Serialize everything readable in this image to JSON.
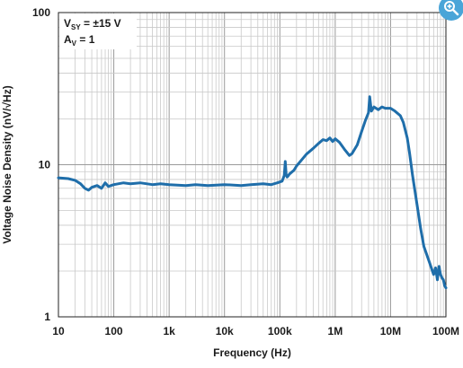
{
  "chart_data": {
    "type": "line",
    "title": "",
    "xlabel": "Frequency (Hz)",
    "ylabel": "Voltage Noise Density (nV/√Hz)",
    "x_scale": "log",
    "y_scale": "log",
    "xlim": [
      10,
      100000000
    ],
    "ylim": [
      1,
      100
    ],
    "x_ticks": [
      10,
      100,
      1000,
      10000,
      100000,
      1000000,
      10000000,
      100000000
    ],
    "x_tick_labels": [
      "10",
      "100",
      "1k",
      "10k",
      "100k",
      "1M",
      "10M",
      "100M"
    ],
    "y_ticks": [
      1,
      10,
      100
    ],
    "y_tick_labels": [
      "1",
      "10",
      "100"
    ],
    "grid": true,
    "legend_box": {
      "line1_main": "V",
      "line1_sub": "SY",
      "line1_rest": " = ±15 V",
      "line2_main": "A",
      "line2_sub": "V",
      "line2_rest": " = 1"
    },
    "series": [
      {
        "color": "#1f6eaa",
        "x": [
          10,
          15,
          20,
          25,
          30,
          35,
          40,
          50,
          60,
          70,
          80,
          100,
          150,
          200,
          300,
          500,
          700,
          1000,
          2000,
          3000,
          5000,
          10000,
          20000,
          30000,
          50000,
          70000,
          90000,
          110000,
          120000,
          125000,
          130000,
          135000,
          140000,
          150000,
          180000,
          200000,
          250000,
          300000,
          400000,
          500000,
          600000,
          700000,
          800000,
          900000,
          1000000,
          1200000,
          1500000,
          1800000,
          2000000,
          2500000,
          3000000,
          3500000,
          4000000,
          4200000,
          4500000,
          5000000,
          6000000,
          7000000,
          8000000,
          10000000,
          12000000,
          15000000,
          17000000,
          20000000,
          22000000,
          25000000,
          30000000,
          35000000,
          40000000,
          50000000,
          60000000,
          65000000,
          70000000,
          75000000,
          80000000,
          85000000,
          90000000,
          95000000,
          100000000
        ],
        "y": [
          8.2,
          8.1,
          7.9,
          7.5,
          7.0,
          6.8,
          7.1,
          7.3,
          7.0,
          7.6,
          7.2,
          7.4,
          7.6,
          7.5,
          7.6,
          7.4,
          7.5,
          7.4,
          7.3,
          7.4,
          7.3,
          7.4,
          7.3,
          7.4,
          7.5,
          7.4,
          7.6,
          7.8,
          8.5,
          10.5,
          8.6,
          8.3,
          8.4,
          8.7,
          9.2,
          9.8,
          10.8,
          11.7,
          12.8,
          13.8,
          14.6,
          14.4,
          15.0,
          14.2,
          14.8,
          14.0,
          12.5,
          11.5,
          11.8,
          13.5,
          16.5,
          19.5,
          22.0,
          28.0,
          22.5,
          24.0,
          23.0,
          24.0,
          23.5,
          23.5,
          22.5,
          21.0,
          19.0,
          15.0,
          12.0,
          8.5,
          5.5,
          3.8,
          2.9,
          2.3,
          1.9,
          2.1,
          1.75,
          2.15,
          1.9,
          1.8,
          1.75,
          1.6,
          1.55
        ]
      }
    ]
  },
  "ui": {
    "zoom_label": "zoom-in-icon"
  }
}
